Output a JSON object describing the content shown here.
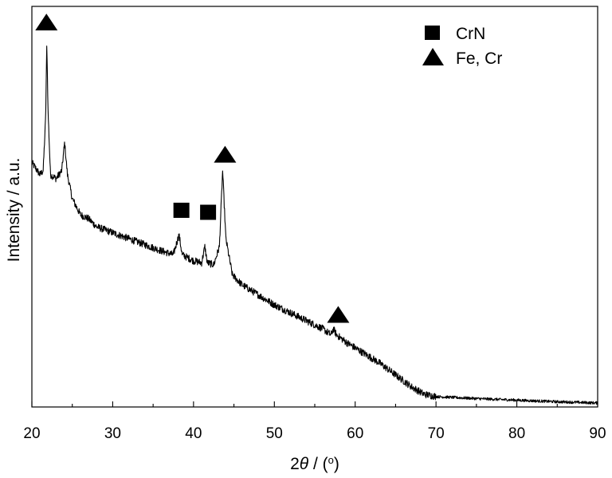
{
  "chart_data": {
    "type": "line",
    "title": "",
    "xlabel_prefix": "2",
    "xlabel_symbol": "θ",
    "xlabel_suffix": " / (",
    "xlabel_degree": "o",
    "xlabel_close": ")",
    "ylabel": "Intensity / a.u.",
    "xlim": [
      20,
      90
    ],
    "ylim": [
      0,
      100
    ],
    "x_ticks": [
      20,
      30,
      40,
      50,
      60,
      70,
      80,
      90
    ],
    "y_ticks_labeled": false,
    "grid": false,
    "legend_position": "top-right",
    "legend": [
      {
        "name": "CrN",
        "marker": "square"
      },
      {
        "name": "Fe, Cr",
        "marker": "triangle"
      }
    ],
    "series": [
      {
        "color": "#000000",
        "profile": [
          [
            20,
            61
          ],
          [
            21,
            58
          ],
          [
            21.4,
            59
          ],
          [
            21.7,
            72
          ],
          [
            21.85,
            91
          ],
          [
            22.0,
            74
          ],
          [
            22.3,
            58
          ],
          [
            23,
            57
          ],
          [
            23.7,
            59
          ],
          [
            24.05,
            66
          ],
          [
            24.4,
            58
          ],
          [
            25,
            52
          ],
          [
            26,
            48
          ],
          [
            27,
            47
          ],
          [
            28,
            45
          ],
          [
            30,
            43.5
          ],
          [
            32,
            42
          ],
          [
            34,
            40.5
          ],
          [
            36,
            39
          ],
          [
            37.5,
            38
          ],
          [
            38.2,
            43
          ],
          [
            38.6,
            38
          ],
          [
            40,
            36.5
          ],
          [
            41,
            36
          ],
          [
            41.4,
            40
          ],
          [
            41.7,
            36
          ],
          [
            42.5,
            35.5
          ],
          [
            43.2,
            40
          ],
          [
            43.6,
            59
          ],
          [
            44.0,
            42
          ],
          [
            44.8,
            33
          ],
          [
            46,
            30.5
          ],
          [
            48,
            28
          ],
          [
            50,
            25.5
          ],
          [
            52,
            23.5
          ],
          [
            54,
            21.5
          ],
          [
            56,
            19.5
          ],
          [
            57,
            18
          ],
          [
            57.3,
            19.5
          ],
          [
            57.7,
            18
          ],
          [
            59,
            16
          ],
          [
            61,
            13.5
          ],
          [
            63,
            11
          ],
          [
            65,
            8
          ],
          [
            67,
            5
          ],
          [
            68.5,
            3.2
          ],
          [
            70,
            2.6
          ],
          [
            75,
            2.1
          ],
          [
            80,
            1.7
          ],
          [
            85,
            1.3
          ],
          [
            90,
            1.0
          ]
        ]
      }
    ],
    "annotations": [
      {
        "x": 21.8,
        "y": 96,
        "marker": "triangle"
      },
      {
        "x": 38.5,
        "y": 49,
        "marker": "square"
      },
      {
        "x": 41.8,
        "y": 48.5,
        "marker": "square"
      },
      {
        "x": 43.9,
        "y": 63,
        "marker": "triangle"
      },
      {
        "x": 57.9,
        "y": 23,
        "marker": "triangle"
      }
    ]
  }
}
